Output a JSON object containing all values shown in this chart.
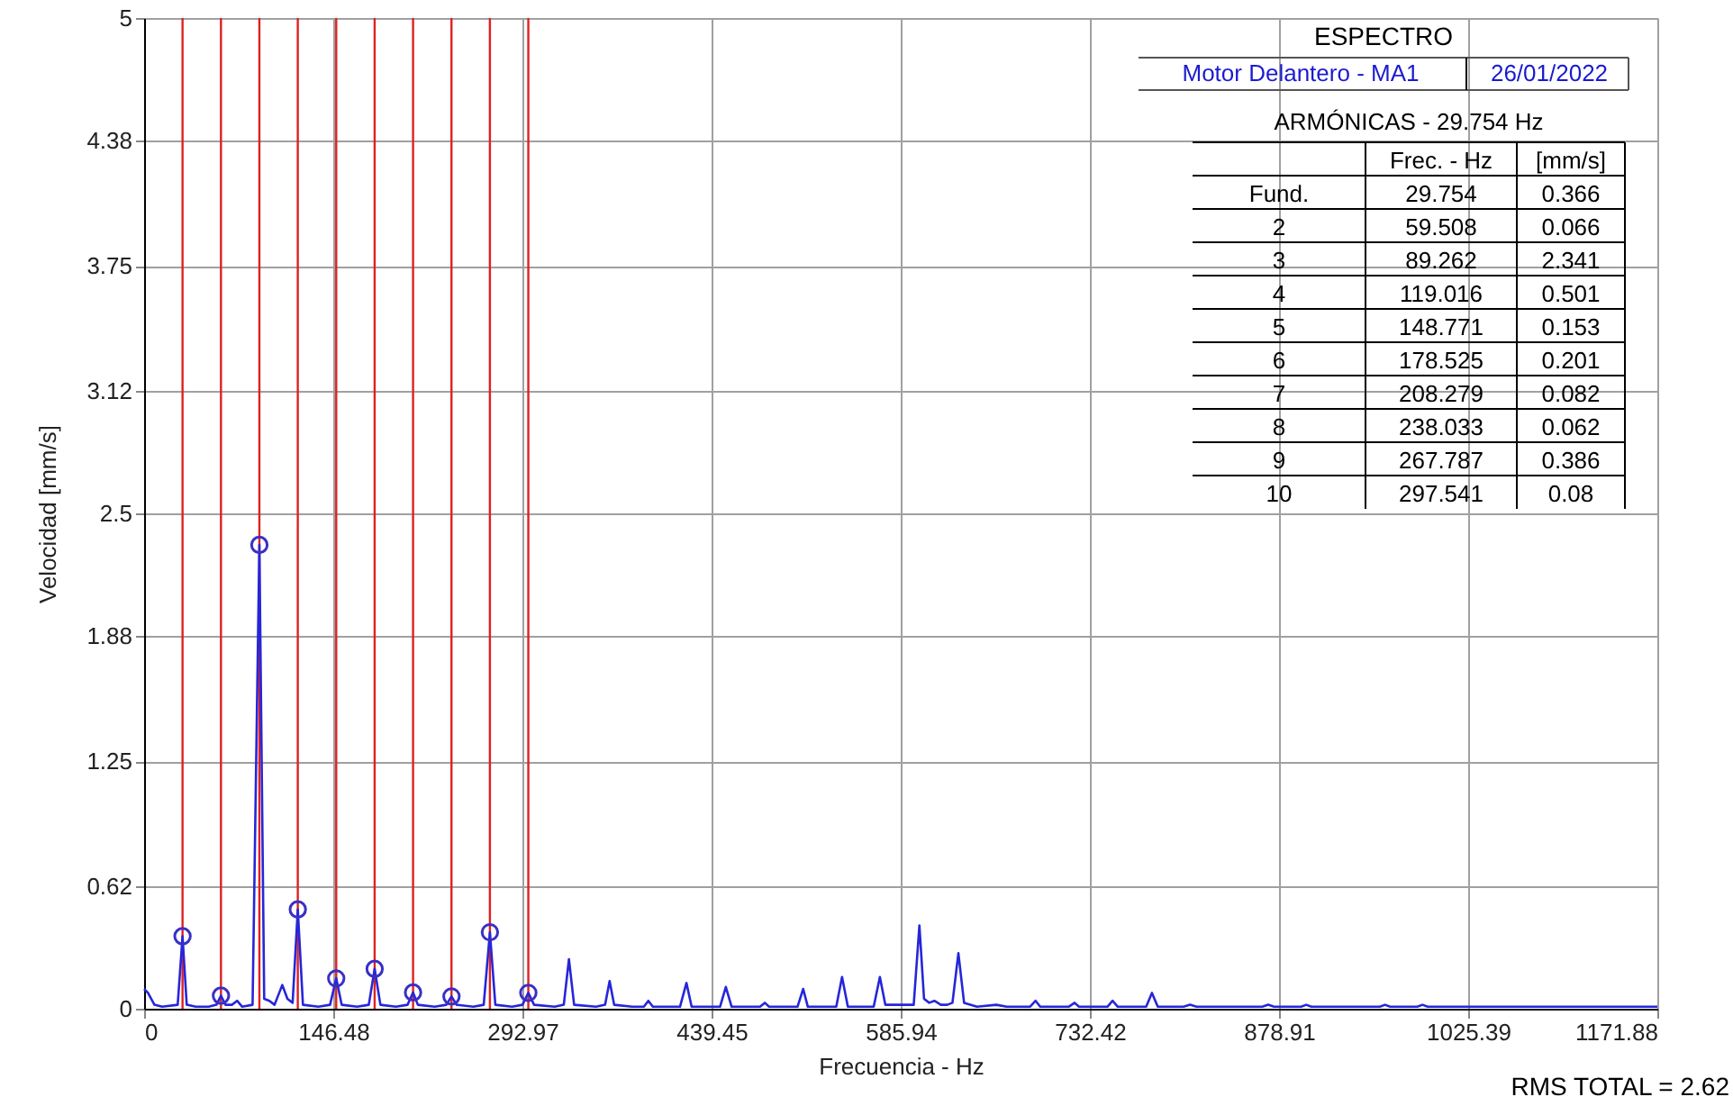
{
  "chart_data": {
    "type": "line",
    "title": "ESPECTRO",
    "xlabel": "Frecuencia - Hz",
    "ylabel": "Velocidad [mm/s]",
    "xlim": [
      0,
      1171.88
    ],
    "ylim": [
      0,
      5
    ],
    "xticks": [
      0,
      146.48,
      292.97,
      439.45,
      585.94,
      732.42,
      878.91,
      1025.39,
      1171.88
    ],
    "yticks": [
      0,
      0.62,
      1.25,
      1.88,
      2.5,
      3.12,
      3.75,
      4.38,
      5
    ],
    "grid": true,
    "series": [
      {
        "type": "line",
        "color": "#2626d9",
        "x": [
          0,
          3,
          8,
          14,
          26,
          29.754,
          33,
          40,
          50,
          56,
          59.508,
          63,
          68,
          72,
          76,
          84,
          89.262,
          93,
          97,
          101,
          107,
          111,
          115,
          119.016,
          123,
          135,
          144,
          148.771,
          153,
          165,
          174,
          178.525,
          183,
          195,
          204,
          208.279,
          212,
          225,
          234,
          238.033,
          242,
          255,
          263,
          267.787,
          272,
          285,
          293,
          297.541,
          302,
          318,
          325,
          329,
          333,
          350,
          357,
          360.5,
          364,
          378,
          387,
          390.5,
          394,
          415,
          420,
          424,
          446,
          450.5,
          455,
          477,
          480.7,
          484,
          506,
          510.4,
          514,
          536,
          540.5,
          545,
          565,
          569.8,
          574,
          590,
          596,
          600.4,
          604,
          608,
          612,
          617,
          622,
          626,
          630.6,
          635,
          645,
          660,
          668,
          686,
          690.4,
          694,
          716,
          720.6,
          724,
          746,
          750,
          754,
          776,
          780.5,
          785,
          805,
          810,
          815,
          866,
          870.5,
          875,
          896,
          900,
          904,
          957,
          961,
          965,
          986,
          990,
          994,
          1171.88
        ],
        "values": [
          0.1,
          0.08,
          0.02,
          0.01,
          0.02,
          0.366,
          0.02,
          0.01,
          0.01,
          0.02,
          0.066,
          0.02,
          0.02,
          0.04,
          0.01,
          0.02,
          2.341,
          0.05,
          0.04,
          0.02,
          0.12,
          0.05,
          0.03,
          0.501,
          0.02,
          0.01,
          0.02,
          0.153,
          0.02,
          0.01,
          0.02,
          0.201,
          0.02,
          0.01,
          0.02,
          0.082,
          0.02,
          0.01,
          0.02,
          0.062,
          0.02,
          0.01,
          0.02,
          0.386,
          0.02,
          0.01,
          0.02,
          0.08,
          0.02,
          0.01,
          0.02,
          0.25,
          0.02,
          0.01,
          0.02,
          0.14,
          0.02,
          0.01,
          0.01,
          0.04,
          0.01,
          0.01,
          0.13,
          0.01,
          0.01,
          0.11,
          0.01,
          0.01,
          0.03,
          0.01,
          0.01,
          0.1,
          0.01,
          0.01,
          0.16,
          0.01,
          0.01,
          0.16,
          0.02,
          0.02,
          0.02,
          0.42,
          0.05,
          0.03,
          0.04,
          0.02,
          0.02,
          0.03,
          0.28,
          0.03,
          0.01,
          0.02,
          0.01,
          0.01,
          0.04,
          0.01,
          0.01,
          0.03,
          0.01,
          0.01,
          0.04,
          0.01,
          0.01,
          0.08,
          0.01,
          0.01,
          0.02,
          0.01,
          0.01,
          0.02,
          0.01,
          0.01,
          0.02,
          0.01,
          0.01,
          0.02,
          0.01,
          0.01,
          0.02,
          0.01,
          0.01
        ]
      },
      {
        "type": "scatter",
        "marker": "circle",
        "color": "#3a2fc4",
        "x": [
          29.754,
          59.508,
          89.262,
          119.016,
          148.771,
          178.525,
          208.279,
          238.033,
          267.787,
          297.541
        ],
        "values": [
          0.366,
          0.066,
          2.341,
          0.501,
          0.153,
          0.201,
          0.082,
          0.062,
          0.386,
          0.08
        ]
      }
    ],
    "ref_lines": [
      {
        "axis": "x",
        "value": 29.754,
        "color": "#e02020"
      },
      {
        "axis": "x",
        "value": 59.508,
        "color": "#e02020"
      },
      {
        "axis": "x",
        "value": 89.262,
        "color": "#e02020"
      },
      {
        "axis": "x",
        "value": 119.016,
        "color": "#e02020"
      },
      {
        "axis": "x",
        "value": 148.771,
        "color": "#e02020"
      },
      {
        "axis": "x",
        "value": 178.525,
        "color": "#e02020"
      },
      {
        "axis": "x",
        "value": 208.279,
        "color": "#e02020"
      },
      {
        "axis": "x",
        "value": 238.033,
        "color": "#e02020"
      },
      {
        "axis": "x",
        "value": 267.787,
        "color": "#e02020"
      },
      {
        "axis": "x",
        "value": 297.541,
        "color": "#e02020"
      }
    ],
    "annotations": [
      "Motor Delantero - MA1",
      "26/01/2022",
      "ARMÓNICAS - 29.754 Hz",
      "RMS TOTAL = 2.62",
      "Frec. - Hz",
      "[mm/s]",
      "Fund.",
      "29.754",
      "0.366",
      "2",
      "59.508",
      "0.066",
      "3",
      "89.262",
      "2.341",
      "4",
      "119.016",
      "0.501",
      "5",
      "148.771",
      "0.153",
      "6",
      "178.525",
      "0.201",
      "7",
      "208.279",
      "0.082",
      "8",
      "238.033",
      "0.062",
      "9",
      "267.787",
      "0.386",
      "10",
      "297.541",
      "0.08"
    ]
  }
}
